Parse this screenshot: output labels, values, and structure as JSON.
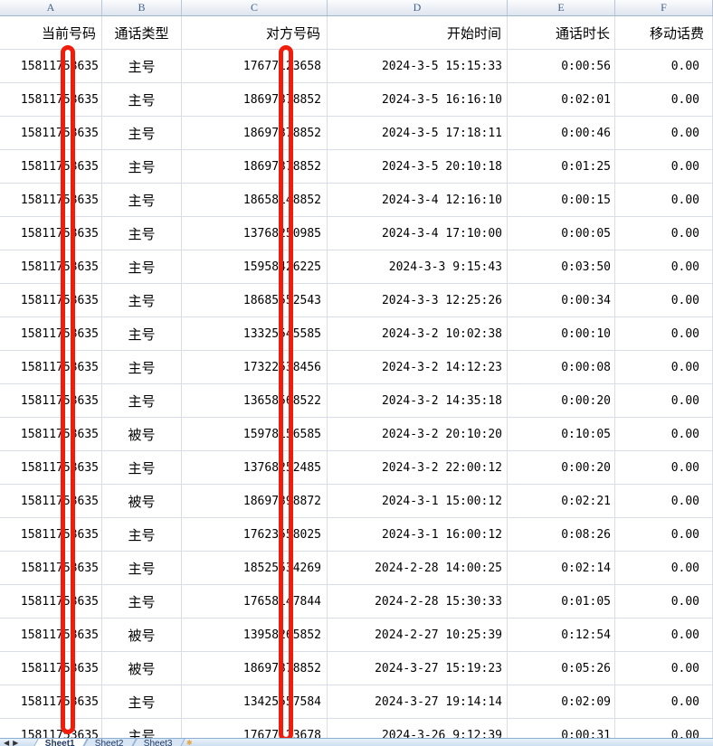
{
  "sheet": {
    "column_letters": [
      "A",
      "B",
      "C",
      "D",
      "E",
      "F"
    ],
    "headers": {
      "a": "当前号码",
      "b": "通话类型",
      "c": "对方号码",
      "d": "开始时间",
      "e": "通话时长",
      "f": "移动话费"
    },
    "rows": [
      {
        "a": "15811753635",
        "b": "主号",
        "c": "17677123658",
        "d": "2024-3-5 15:15:33",
        "e": "0:00:56",
        "f": "0.00"
      },
      {
        "a": "15811753635",
        "b": "主号",
        "c": "18697378852",
        "d": "2024-3-5 16:16:10",
        "e": "0:02:01",
        "f": "0.00"
      },
      {
        "a": "15811753635",
        "b": "主号",
        "c": "18697378852",
        "d": "2024-3-5 17:18:11",
        "e": "0:00:46",
        "f": "0.00"
      },
      {
        "a": "15811753635",
        "b": "主号",
        "c": "18697378852",
        "d": "2024-3-5 20:10:18",
        "e": "0:01:25",
        "f": "0.00"
      },
      {
        "a": "15811753635",
        "b": "主号",
        "c": "18658148852",
        "d": "2024-3-4 12:16:10",
        "e": "0:00:15",
        "f": "0.00"
      },
      {
        "a": "15811753635",
        "b": "主号",
        "c": "13768250985",
        "d": "2024-3-4 17:10:00",
        "e": "0:00:05",
        "f": "0.00"
      },
      {
        "a": "15811753635",
        "b": "主号",
        "c": "15958426225",
        "d": "2024-3-3 9:15:43",
        "e": "0:03:50",
        "f": "0.00"
      },
      {
        "a": "15811753635",
        "b": "主号",
        "c": "18685552543",
        "d": "2024-3-3 12:25:26",
        "e": "0:00:34",
        "f": "0.00"
      },
      {
        "a": "15811753635",
        "b": "主号",
        "c": "13325545585",
        "d": "2024-3-2 10:02:38",
        "e": "0:00:10",
        "f": "0.00"
      },
      {
        "a": "15811753635",
        "b": "主号",
        "c": "17322538456",
        "d": "2024-3-2 14:12:23",
        "e": "0:00:08",
        "f": "0.00"
      },
      {
        "a": "15811753635",
        "b": "主号",
        "c": "13658568522",
        "d": "2024-3-2 14:35:18",
        "e": "0:00:20",
        "f": "0.00"
      },
      {
        "a": "15811753635",
        "b": "被号",
        "c": "15978156585",
        "d": "2024-3-2 20:10:20",
        "e": "0:10:05",
        "f": "0.00"
      },
      {
        "a": "15811753635",
        "b": "主号",
        "c": "13768252485",
        "d": "2024-3-2 22:00:12",
        "e": "0:00:20",
        "f": "0.00"
      },
      {
        "a": "15811753635",
        "b": "被号",
        "c": "18697398872",
        "d": "2024-3-1 15:00:12",
        "e": "0:02:21",
        "f": "0.00"
      },
      {
        "a": "15811753635",
        "b": "主号",
        "c": "17623558025",
        "d": "2024-3-1 16:00:12",
        "e": "0:08:26",
        "f": "0.00"
      },
      {
        "a": "15811753635",
        "b": "主号",
        "c": "18525534269",
        "d": "2024-2-28 14:00:25",
        "e": "0:02:14",
        "f": "0.00"
      },
      {
        "a": "15811753635",
        "b": "主号",
        "c": "17658147844",
        "d": "2024-2-28 15:30:33",
        "e": "0:01:05",
        "f": "0.00"
      },
      {
        "a": "15811753635",
        "b": "被号",
        "c": "13958265852",
        "d": "2024-2-27 10:25:39",
        "e": "0:12:54",
        "f": "0.00"
      },
      {
        "a": "15811753635",
        "b": "被号",
        "c": "18697378852",
        "d": "2024-3-27 15:19:23",
        "e": "0:05:26",
        "f": "0.00"
      },
      {
        "a": "15811753635",
        "b": "主号",
        "c": "13425557584",
        "d": "2024-3-27 19:14:14",
        "e": "0:02:09",
        "f": "0.00"
      },
      {
        "a": "15811753635",
        "b": "主号",
        "c": "17677123678",
        "d": "2024-3-26 9:12:39",
        "e": "0:00:31",
        "f": "0.00"
      }
    ],
    "tabs": [
      "Sheet1",
      "Sheet2",
      "Sheet3"
    ],
    "active_tab": "Sheet1"
  },
  "annotations": {
    "redaction_bar_color": "#f01c0c"
  }
}
